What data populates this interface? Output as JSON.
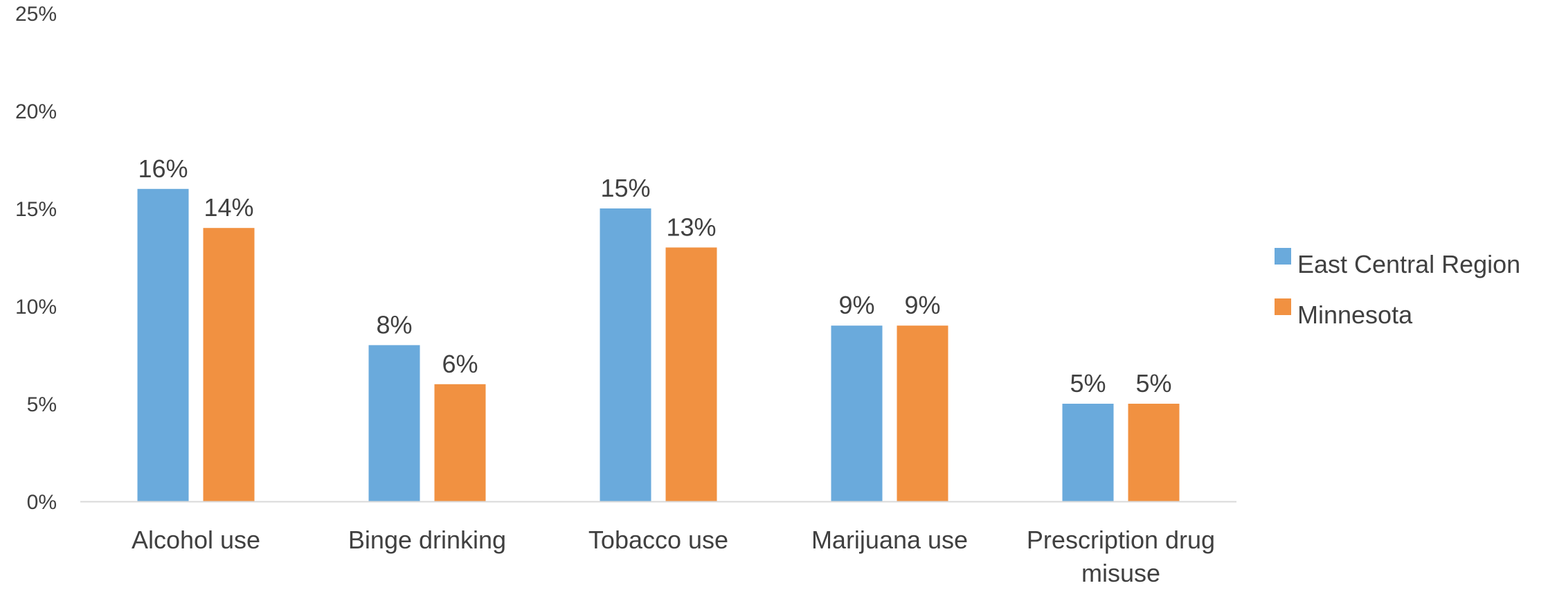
{
  "chart_data": {
    "type": "bar",
    "categories": [
      [
        "Alcohol use"
      ],
      [
        "Binge drinking"
      ],
      [
        "Tobacco use"
      ],
      [
        "Marijuana use"
      ],
      [
        "Prescription drug",
        "misuse"
      ]
    ],
    "series": [
      {
        "name": "East Central Region",
        "color": "#6aaadc",
        "values": [
          16,
          8,
          15,
          9,
          5
        ],
        "labels": [
          "16%",
          "8%",
          "15%",
          "9%",
          "5%"
        ]
      },
      {
        "name": "Minnesota",
        "color": "#f19141",
        "values": [
          14,
          6,
          13,
          9,
          5
        ],
        "labels": [
          "14%",
          "6%",
          "13%",
          "9%",
          "5%"
        ]
      }
    ],
    "ylim": [
      0,
      25
    ],
    "y_ticks": [
      0,
      5,
      10,
      15,
      20,
      25
    ],
    "y_tick_labels": [
      "0%",
      "5%",
      "10%",
      "15%",
      "20%",
      "25%"
    ],
    "grid": false,
    "legend_position": "right",
    "axis_color": "#d9d9d9",
    "text_color": "#404040"
  }
}
